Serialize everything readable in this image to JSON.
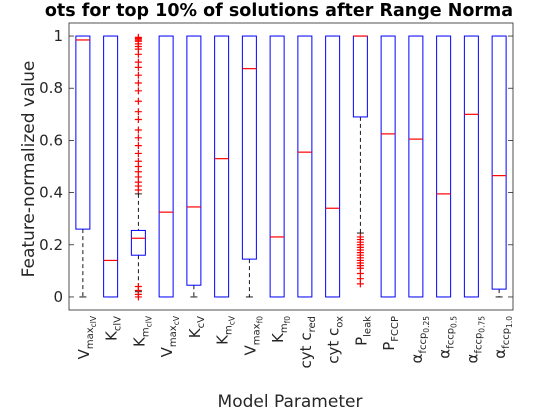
{
  "chart_data": {
    "type": "boxplot",
    "title": "ots for top 10% of solutions after Range Norma",
    "xlabel": "Model Parameter",
    "ylabel": "Feature-normalized value",
    "ylim": [
      -0.05,
      1.05
    ],
    "yticks": [
      0,
      0.2,
      0.4,
      0.6,
      0.8,
      1
    ],
    "ytick_labels": [
      "0",
      "0.2",
      "0.4",
      "0.6",
      "0.8",
      "1"
    ],
    "colors": {
      "box": "#0000ff",
      "median": "#ff0000",
      "whisker": "#000000",
      "outlier": "#ff0000"
    },
    "categories": [
      {
        "name": "max_clV",
        "label": [
          {
            "t": "V"
          },
          {
            "t": "max",
            "s": "sub"
          },
          {
            "t": "clV",
            "s": "subsub"
          }
        ]
      },
      {
        "name": "K_clV",
        "label": [
          {
            "t": "K"
          },
          {
            "t": "clV",
            "s": "sub"
          }
        ]
      },
      {
        "name": "K_m_clV",
        "label": [
          {
            "t": "K"
          },
          {
            "t": "m",
            "s": "sub"
          },
          {
            "t": "clV",
            "s": "subsub"
          }
        ]
      },
      {
        "name": "V_max_cV",
        "label": [
          {
            "t": "V"
          },
          {
            "t": "max",
            "s": "sub"
          },
          {
            "t": "cV",
            "s": "subsub"
          }
        ]
      },
      {
        "name": "K_cV",
        "label": [
          {
            "t": "K"
          },
          {
            "t": "cV",
            "s": "sub"
          }
        ]
      },
      {
        "name": "K_m_cV",
        "label": [
          {
            "t": "K"
          },
          {
            "t": "m",
            "s": "sub"
          },
          {
            "t": "cV",
            "s": "subsub"
          }
        ]
      },
      {
        "name": "V_max_f0",
        "label": [
          {
            "t": "V"
          },
          {
            "t": "max",
            "s": "sub"
          },
          {
            "t": "f0",
            "s": "subsub"
          }
        ]
      },
      {
        "name": "K_m_f0",
        "label": [
          {
            "t": "K"
          },
          {
            "t": "m",
            "s": "sub"
          },
          {
            "t": "f0",
            "s": "subsub"
          }
        ]
      },
      {
        "name": "cyt_c_red",
        "label": [
          {
            "t": "cyt c"
          },
          {
            "t": "red",
            "s": "sub"
          }
        ]
      },
      {
        "name": "cyt_c_ox",
        "label": [
          {
            "t": "cyt c"
          },
          {
            "t": "ox",
            "s": "sub"
          }
        ]
      },
      {
        "name": "P_leak",
        "label": [
          {
            "t": "P"
          },
          {
            "t": "leak",
            "s": "sub"
          }
        ]
      },
      {
        "name": "P_FCCP",
        "label": [
          {
            "t": "P"
          },
          {
            "t": "FCCP",
            "s": "sub"
          }
        ]
      },
      {
        "name": "alpha_fccp_0.25",
        "label": [
          {
            "t": "α"
          },
          {
            "t": "fccp",
            "s": "sub"
          },
          {
            "t": "0.25",
            "s": "subsub"
          }
        ]
      },
      {
        "name": "alpha_fccp_0.5",
        "label": [
          {
            "t": "α"
          },
          {
            "t": "fccp",
            "s": "sub"
          },
          {
            "t": "0.5",
            "s": "subsub"
          }
        ]
      },
      {
        "name": "alpha_fccp_0.75",
        "label": [
          {
            "t": "α"
          },
          {
            "t": "fccp",
            "s": "sub"
          },
          {
            "t": "0.75",
            "s": "subsub"
          }
        ]
      },
      {
        "name": "alpha_fccp_1.0",
        "label": [
          {
            "t": "α"
          },
          {
            "t": "fccp",
            "s": "sub"
          },
          {
            "t": "1.0",
            "s": "subsub"
          }
        ]
      }
    ],
    "boxes": [
      {
        "q1": 0.26,
        "median": 0.985,
        "q3": 1.0,
        "whisker_low": 0,
        "whisker_high": 1,
        "outliers": []
      },
      {
        "q1": 0.0,
        "median": 0.14,
        "q3": 1.0,
        "whisker_low": 0,
        "whisker_high": 1,
        "outliers": []
      },
      {
        "q1": 0.16,
        "median": 0.225,
        "q3": 0.255,
        "whisker_low": 0.02,
        "whisker_high": 0.395,
        "outliers": [
          0.0,
          0.01,
          0.025,
          0.04,
          0.41,
          0.425,
          0.44,
          0.46,
          0.48,
          0.5,
          0.52,
          0.55,
          0.58,
          0.61,
          0.64,
          0.68,
          0.71,
          0.75,
          0.79,
          0.82,
          0.85,
          0.88,
          0.9,
          0.93,
          0.95,
          0.96,
          0.97,
          0.98,
          0.985,
          0.99,
          0.995
        ]
      },
      {
        "q1": 0.0,
        "median": 0.325,
        "q3": 1.0,
        "whisker_low": 0,
        "whisker_high": 1,
        "outliers": []
      },
      {
        "q1": 0.045,
        "median": 0.345,
        "q3": 1.0,
        "whisker_low": 0,
        "whisker_high": 1,
        "outliers": []
      },
      {
        "q1": 0.0,
        "median": 0.53,
        "q3": 1.0,
        "whisker_low": 0,
        "whisker_high": 1,
        "outliers": []
      },
      {
        "q1": 0.145,
        "median": 0.875,
        "q3": 1.0,
        "whisker_low": 0,
        "whisker_high": 1,
        "outliers": []
      },
      {
        "q1": 0.0,
        "median": 0.23,
        "q3": 1.0,
        "whisker_low": 0,
        "whisker_high": 1,
        "outliers": []
      },
      {
        "q1": 0.0,
        "median": 0.555,
        "q3": 1.0,
        "whisker_low": 0,
        "whisker_high": 1,
        "outliers": []
      },
      {
        "q1": 0.0,
        "median": 0.34,
        "q3": 1.0,
        "whisker_low": 0,
        "whisker_high": 1,
        "outliers": []
      },
      {
        "q1": 0.69,
        "median": 1.0,
        "q3": 1.0,
        "whisker_low": 0.245,
        "whisker_high": 1,
        "outliers": [
          0.05,
          0.07,
          0.09,
          0.11,
          0.12,
          0.13,
          0.14,
          0.15,
          0.16,
          0.17,
          0.18,
          0.19,
          0.2,
          0.21,
          0.22,
          0.23
        ]
      },
      {
        "q1": 0.0,
        "median": 0.625,
        "q3": 1.0,
        "whisker_low": 0,
        "whisker_high": 1,
        "outliers": []
      },
      {
        "q1": 0.0,
        "median": 0.605,
        "q3": 1.0,
        "whisker_low": 0,
        "whisker_high": 1,
        "outliers": []
      },
      {
        "q1": 0.0,
        "median": 0.395,
        "q3": 1.0,
        "whisker_low": 0,
        "whisker_high": 1,
        "outliers": []
      },
      {
        "q1": 0.0,
        "median": 0.7,
        "q3": 1.0,
        "whisker_low": 0,
        "whisker_high": 1,
        "outliers": []
      },
      {
        "q1": 0.03,
        "median": 0.465,
        "q3": 1.0,
        "whisker_low": 0,
        "whisker_high": 1,
        "outliers": []
      }
    ]
  }
}
